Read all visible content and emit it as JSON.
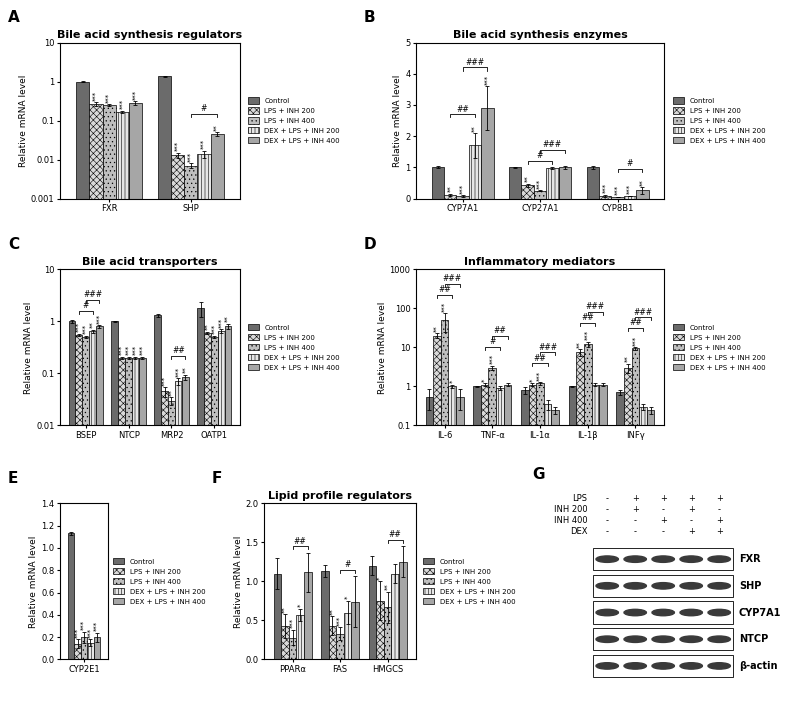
{
  "chart_data": [
    {
      "panel": "A",
      "type": "bar",
      "title": "Bile acid synthesis regulators",
      "y_label": "Relative mRNA level",
      "categories": [
        "FXR",
        "SHP"
      ],
      "log": "y",
      "ylim": [
        0.001,
        10
      ],
      "yticks": [
        0.001,
        0.01,
        0.1,
        1,
        10
      ],
      "legend": "center left",
      "series": [
        {
          "name": "Control",
          "color": "#6b6b6b",
          "values": [
            1.0,
            1.35
          ],
          "errors": [
            0.02,
            0.05
          ],
          "significance": [
            null,
            null
          ]
        },
        {
          "name": "LPS + INH 200",
          "color": "#d9d9d9",
          "values": [
            0.27,
            0.013
          ],
          "errors": [
            0.03,
            0.002
          ],
          "significance": [
            "***",
            "***"
          ]
        },
        {
          "name": "LPS + INH 400",
          "color": "#bfbfbf",
          "values": [
            0.25,
            0.007
          ],
          "errors": [
            0.01,
            0.001
          ],
          "significance": [
            "***",
            "***"
          ]
        },
        {
          "name": "DEX + LPS + INH 200",
          "color": "#e6e6e6",
          "values": [
            0.17,
            0.014
          ],
          "errors": [
            0.01,
            0.003
          ],
          "significance": [
            "***",
            "***"
          ]
        },
        {
          "name": "DEX + LPS + INH 400",
          "color": "#a6a6a6",
          "values": [
            0.28,
            0.045
          ],
          "errors": [
            0.03,
            0.005
          ],
          "significance": [
            "***",
            "**"
          ]
        }
      ],
      "comparisons": [
        {
          "category": "SHP",
          "from": "LPS + INH 400",
          "to": "DEX + LPS + INH 400",
          "label": "#"
        }
      ]
    },
    {
      "panel": "B",
      "type": "bar",
      "title": "Bile acid synthesis enzymes",
      "y_label": "Relative mRNA level",
      "categories": [
        "CYP7A1",
        "CYP27A1",
        "CYP8B1"
      ],
      "ylim": [
        0,
        5
      ],
      "yticks": [
        0,
        1,
        2,
        3,
        4,
        5
      ],
      "legend": "center left",
      "series": [
        {
          "name": "Control",
          "color": "#6b6b6b",
          "values": [
            1.0,
            1.0,
            1.0
          ],
          "errors": [
            0.03,
            0.02,
            0.05
          ],
          "significance": [
            null,
            null,
            null
          ]
        },
        {
          "name": "LPS + INH 200",
          "color": "#d9d9d9",
          "values": [
            0.12,
            0.42,
            0.09
          ],
          "errors": [
            0.03,
            0.06,
            0.03
          ],
          "significance": [
            "**",
            "**",
            "***"
          ]
        },
        {
          "name": "LPS + INH 400",
          "color": "#bfbfbf",
          "values": [
            0.07,
            0.25,
            0.05
          ],
          "errors": [
            0.03,
            0.02,
            0.01
          ],
          "significance": [
            "***",
            "***",
            "***"
          ]
        },
        {
          "name": "DEX + LPS + INH 200",
          "color": "#e6e6e6",
          "values": [
            1.7,
            0.98,
            0.08
          ],
          "errors": [
            0.4,
            0.02,
            0.01
          ],
          "significance": [
            "**",
            null,
            "***"
          ]
        },
        {
          "name": "DEX + LPS + INH 400",
          "color": "#a6a6a6",
          "values": [
            2.9,
            1.0,
            0.26
          ],
          "errors": [
            0.7,
            0.05,
            0.1
          ],
          "significance": [
            "***",
            null,
            "**"
          ]
        }
      ],
      "comparisons": [
        {
          "category": "CYP7A1",
          "from": "LPS + INH 200",
          "to": "DEX + LPS + INH 200",
          "label": "##"
        },
        {
          "category": "CYP7A1",
          "from": "LPS + INH 400",
          "to": "DEX + LPS + INH 400",
          "label": "###"
        },
        {
          "category": "CYP27A1",
          "from": "LPS + INH 200",
          "to": "DEX + LPS + INH 200",
          "label": "#"
        },
        {
          "category": "CYP27A1",
          "from": "LPS + INH 400",
          "to": "DEX + LPS + INH 400",
          "label": "###"
        },
        {
          "category": "CYP8B1",
          "from": "LPS + INH 400",
          "to": "DEX + LPS + INH 400",
          "label": "#"
        }
      ]
    },
    {
      "panel": "C",
      "type": "bar",
      "title": "Bile acid transporters",
      "y_label": "Relative mRNA level",
      "categories": [
        "BSEP",
        "NTCP",
        "MRP2",
        "OATP1"
      ],
      "log": "y",
      "ylim": [
        0.01,
        10
      ],
      "yticks": [
        0.01,
        0.1,
        1,
        10
      ],
      "legend": "center left",
      "series": [
        {
          "name": "Control",
          "color": "#6b6b6b",
          "values": [
            1.0,
            1.0,
            1.3,
            1.8
          ],
          "errors": [
            0.05,
            0.03,
            0.1,
            0.6
          ],
          "significance": [
            null,
            null,
            null,
            null
          ]
        },
        {
          "name": "LPS + INH 200",
          "color": "#d9d9d9",
          "values": [
            0.55,
            0.2,
            0.045,
            0.6
          ],
          "errors": [
            0.03,
            0.01,
            0.01,
            0.03
          ],
          "significance": [
            "***",
            "***",
            "***",
            "**"
          ]
        },
        {
          "name": "LPS + INH 400",
          "color": "#bfbfbf",
          "values": [
            0.5,
            0.2,
            0.03,
            0.5
          ],
          "errors": [
            0.03,
            0.01,
            0.005,
            0.03
          ],
          "significance": [
            "***",
            "***",
            "**",
            "***"
          ]
        },
        {
          "name": "DEX + LPS + INH 200",
          "color": "#e6e6e6",
          "values": [
            0.65,
            0.2,
            0.07,
            0.65
          ],
          "errors": [
            0.04,
            0.01,
            0.01,
            0.05
          ],
          "significance": [
            "**",
            "***",
            "***",
            "***"
          ]
        },
        {
          "name": "DEX + LPS + INH 400",
          "color": "#a6a6a6",
          "values": [
            0.8,
            0.2,
            0.085,
            0.8
          ],
          "errors": [
            0.05,
            0.01,
            0.01,
            0.1
          ],
          "significance": [
            "***",
            "***",
            "**",
            "**"
          ]
        }
      ],
      "comparisons": [
        {
          "category": "BSEP",
          "from": "LPS + INH 200",
          "to": "DEX + LPS + INH 200",
          "label": "#"
        },
        {
          "category": "BSEP",
          "from": "LPS + INH 400",
          "to": "DEX + LPS + INH 400",
          "label": "###"
        },
        {
          "category": "MRP2",
          "from": "LPS + INH 400",
          "to": "DEX + LPS + INH 400",
          "label": "##"
        }
      ]
    },
    {
      "panel": "D",
      "type": "bar",
      "title": "Inflammatory mediators",
      "y_label": "Relative mRNA level",
      "categories": [
        "IL-6",
        "TNF-α",
        "IL-1α",
        "IL-1β",
        "INFγ"
      ],
      "log": "y",
      "ylim": [
        0.1,
        1000
      ],
      "yticks": [
        0.1,
        1,
        10,
        100,
        1000
      ],
      "legend": "center left",
      "series": [
        {
          "name": "Control",
          "color": "#6b6b6b",
          "values": [
            0.55,
            1.0,
            0.8,
            1.0,
            0.7
          ],
          "errors": [
            0.3,
            0.05,
            0.15,
            0.05,
            0.1
          ],
          "significance": [
            null,
            null,
            null,
            null,
            null
          ]
        },
        {
          "name": "LPS + INH 200",
          "color": "#d9d9d9",
          "values": [
            20,
            1.1,
            1.1,
            7.5,
            3.0
          ],
          "errors": [
            3,
            0.1,
            0.1,
            1.5,
            0.8
          ],
          "significance": [
            "**",
            "*",
            "*",
            "**",
            "**"
          ]
        },
        {
          "name": "LPS + INH 400",
          "color": "#bfbfbf",
          "values": [
            50,
            3.0,
            1.2,
            12,
            9.5
          ],
          "errors": [
            25,
            0.4,
            0.1,
            2,
            0.8
          ],
          "significance": [
            "***",
            "***",
            "***",
            "***",
            "***"
          ]
        },
        {
          "name": "DEX + LPS + INH 200",
          "color": "#e6e6e6",
          "values": [
            1.0,
            0.9,
            0.35,
            1.1,
            0.3
          ],
          "errors": [
            0.1,
            0.1,
            0.1,
            0.1,
            0.05
          ],
          "significance": [
            "*",
            null,
            null,
            null,
            null
          ]
        },
        {
          "name": "DEX + LPS + INH 400",
          "color": "#a6a6a6",
          "values": [
            0.55,
            1.1,
            0.25,
            1.1,
            0.25
          ],
          "errors": [
            0.3,
            0.1,
            0.05,
            0.1,
            0.05
          ],
          "significance": [
            null,
            null,
            null,
            null,
            null
          ]
        }
      ],
      "comparisons": [
        {
          "category": "IL-6",
          "from": "LPS + INH 200",
          "to": "DEX + LPS + INH 200",
          "label": "##"
        },
        {
          "category": "IL-6",
          "from": "LPS + INH 400",
          "to": "DEX + LPS + INH 400",
          "label": "###"
        },
        {
          "category": "TNF-α",
          "from": "LPS + INH 200",
          "to": "DEX + LPS + INH 200",
          "label": "#"
        },
        {
          "category": "TNF-α",
          "from": "LPS + INH 400",
          "to": "DEX + LPS + INH 400",
          "label": "##"
        },
        {
          "category": "IL-1α",
          "from": "LPS + INH 200",
          "to": "DEX + LPS + INH 200",
          "label": "##"
        },
        {
          "category": "IL-1α",
          "from": "LPS + INH 400",
          "to": "DEX + LPS + INH 400",
          "label": "###"
        },
        {
          "category": "IL-1β",
          "from": "LPS + INH 200",
          "to": "DEX + LPS + INH 200",
          "label": "##"
        },
        {
          "category": "IL-1β",
          "from": "LPS + INH 400",
          "to": "DEX + LPS + INH 400",
          "label": "###"
        },
        {
          "category": "INFγ",
          "from": "LPS + INH 200",
          "to": "DEX + LPS + INH 200",
          "label": "##"
        },
        {
          "category": "INFγ",
          "from": "LPS + INH 400",
          "to": "DEX + LPS + INH 400",
          "label": "###"
        }
      ]
    },
    {
      "panel": "E",
      "type": "bar",
      "y_label": "Relative mRNA level",
      "categories": [
        "CYP2E1"
      ],
      "ylim": [
        0,
        1.4
      ],
      "yticks": [
        {
          "value": 0,
          "label": "0.0"
        },
        0.2,
        0.4,
        0.6,
        0.8,
        {
          "value": 1,
          "label": "1.0"
        },
        1.2,
        1.4
      ],
      "legend": "center left",
      "series": [
        {
          "name": "Control",
          "color": "#6b6b6b",
          "values": [
            1.13
          ],
          "errors": [
            0.01
          ],
          "significance": [
            null
          ]
        },
        {
          "name": "LPS + INH 200",
          "color": "#d9d9d9",
          "values": [
            0.14
          ],
          "errors": [
            0.04
          ],
          "significance": [
            "***"
          ]
        },
        {
          "name": "LPS + INH 400",
          "color": "#bfbfbf",
          "values": [
            0.2
          ],
          "errors": [
            0.05
          ],
          "significance": [
            "***"
          ]
        },
        {
          "name": "DEX + LPS + INH 200",
          "color": "#e6e6e6",
          "values": [
            0.15
          ],
          "errors": [
            0.03
          ],
          "significance": [
            "***"
          ]
        },
        {
          "name": "DEX + LPS + INH 400",
          "color": "#a6a6a6",
          "values": [
            0.2
          ],
          "errors": [
            0.04
          ],
          "significance": [
            "***"
          ]
        }
      ]
    },
    {
      "panel": "F",
      "type": "bar",
      "title": "Lipid profile regulators",
      "y_label": "Relative mRNA level",
      "categories": [
        "PPARα",
        "FAS",
        "HMGCS"
      ],
      "ylim": [
        0,
        2
      ],
      "yticks": [
        {
          "value": 0,
          "label": "0.0"
        },
        0.5,
        {
          "value": 1,
          "label": "1.0"
        },
        1.5,
        {
          "value": 2,
          "label": "2.0"
        }
      ],
      "legend": "center left",
      "series": [
        {
          "name": "Control",
          "color": "#6b6b6b",
          "values": [
            1.1,
            1.13,
            1.2
          ],
          "errors": [
            0.2,
            0.08,
            0.12
          ],
          "significance": [
            null,
            null,
            null
          ]
        },
        {
          "name": "LPS + INH 200",
          "color": "#d9d9d9",
          "values": [
            0.43,
            0.43,
            0.75
          ],
          "errors": [
            0.15,
            0.12,
            0.25
          ],
          "significance": [
            "**",
            "**",
            "*"
          ]
        },
        {
          "name": "LPS + INH 400",
          "color": "#bfbfbf",
          "values": [
            0.28,
            0.33,
            0.67
          ],
          "errors": [
            0.1,
            0.08,
            0.2
          ],
          "significance": [
            "***",
            "***",
            "**"
          ]
        },
        {
          "name": "DEX + LPS + INH 200",
          "color": "#e6e6e6",
          "values": [
            0.57,
            0.6,
            1.1
          ],
          "errors": [
            0.08,
            0.15,
            0.12
          ],
          "significance": [
            "*",
            "*",
            null
          ]
        },
        {
          "name": "DEX + LPS + INH 400",
          "color": "#a6a6a6",
          "values": [
            1.12,
            0.74,
            1.25
          ],
          "errors": [
            0.25,
            0.33,
            0.2
          ],
          "significance": [
            null,
            null,
            null
          ]
        }
      ],
      "comparisons": [
        {
          "category": "PPARα",
          "from": "LPS + INH 400",
          "to": "DEX + LPS + INH 400",
          "label": "##"
        },
        {
          "category": "FAS",
          "from": "LPS + INH 400",
          "to": "DEX + LPS + INH 400",
          "label": "#"
        },
        {
          "category": "HMGCS",
          "from": "LPS + INH 400",
          "to": "DEX + LPS + INH 400",
          "label": "##"
        }
      ]
    }
  ],
  "blot": {
    "panel": "G",
    "conditions": [
      {
        "label": "LPS",
        "signs": [
          "-",
          "+",
          "+",
          "+",
          "+"
        ]
      },
      {
        "label": "INH 200",
        "signs": [
          "-",
          "+",
          "-",
          "+",
          "-"
        ]
      },
      {
        "label": "INH 400",
        "signs": [
          "-",
          "-",
          "+",
          "-",
          "+"
        ]
      },
      {
        "label": "DEX",
        "signs": [
          "-",
          "-",
          "-",
          "+",
          "+"
        ]
      }
    ],
    "bands": [
      "FXR",
      "SHP",
      "CYP7A1",
      "NTCP",
      "β-actin"
    ]
  }
}
